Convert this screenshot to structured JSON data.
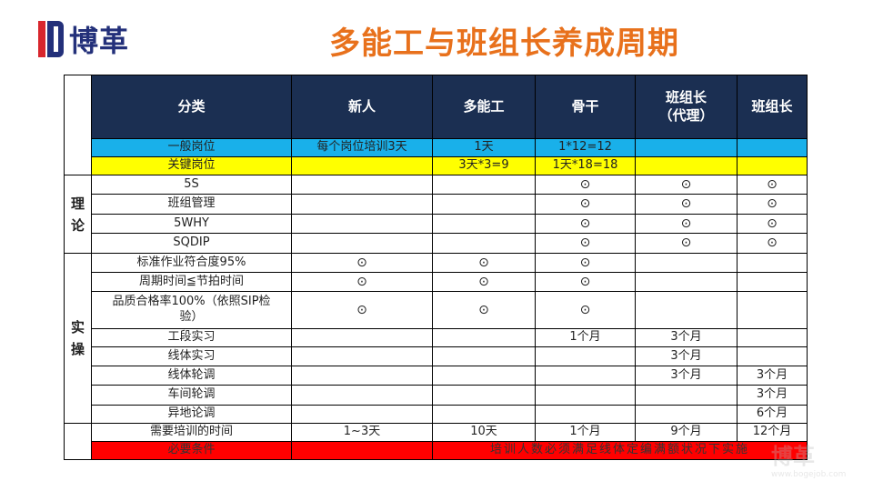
{
  "logo": {
    "text": "博革",
    "colors": {
      "red": "#d8262d",
      "blue": "#23307a"
    }
  },
  "title": "多能工与班组长养成周期",
  "table": {
    "headers": [
      "分类",
      "新人",
      "多能工",
      "骨干",
      "班组长\n（代理）",
      "班组长"
    ],
    "rows": [
      {
        "group": "",
        "label": "一般岗位",
        "cells": [
          "每个岗位培训3天",
          "1天",
          "1*12=12",
          "",
          ""
        ],
        "style": "blue"
      },
      {
        "group": "",
        "label": "关键岗位",
        "cells": [
          "",
          "3天*3=9",
          "1天*18=18",
          "",
          ""
        ],
        "style": "yellow"
      },
      {
        "group": "理论",
        "label": "5S",
        "cells": [
          "",
          "",
          "⊙",
          "⊙",
          "⊙"
        ]
      },
      {
        "group": "理论",
        "label": "班组管理",
        "cells": [
          "",
          "",
          "⊙",
          "⊙",
          "⊙"
        ]
      },
      {
        "group": "理论",
        "label": "5WHY",
        "cells": [
          "",
          "",
          "⊙",
          "⊙",
          "⊙"
        ]
      },
      {
        "group": "理论",
        "label": "SQDIP",
        "cells": [
          "",
          "",
          "⊙",
          "⊙",
          "⊙"
        ]
      },
      {
        "group": "实操",
        "label": "标准作业符合度95%",
        "cells": [
          "⊙",
          "⊙",
          "⊙",
          "",
          ""
        ]
      },
      {
        "group": "实操",
        "label": "周期时间≦节拍时间",
        "cells": [
          "⊙",
          "⊙",
          "⊙",
          "",
          ""
        ]
      },
      {
        "group": "实操",
        "label": "品质合格率100%（依照SIP检验）",
        "cells": [
          "⊙",
          "⊙",
          "⊙",
          "",
          ""
        ]
      },
      {
        "group": "实操",
        "label": "工段实习",
        "cells": [
          "",
          "",
          "1个月",
          "3个月",
          ""
        ]
      },
      {
        "group": "实操",
        "label": "线体实习",
        "cells": [
          "",
          "",
          "",
          "3个月",
          ""
        ]
      },
      {
        "group": "实操",
        "label": "线体轮调",
        "cells": [
          "",
          "",
          "",
          "3个月",
          "3个月"
        ]
      },
      {
        "group": "实操",
        "label": "车间轮调",
        "cells": [
          "",
          "",
          "",
          "",
          "3个月"
        ]
      },
      {
        "group": "实操",
        "label": "异地论调",
        "cells": [
          "",
          "",
          "",
          "",
          "6个月"
        ]
      },
      {
        "group": "",
        "label": "需要培训的时间",
        "cells": [
          "1~3天",
          "10天",
          "1个月",
          "9个月",
          "12个月"
        ]
      },
      {
        "group": "",
        "label": "必要条件",
        "cells": [
          "",
          "培训人数必须满足线体定编满额状况下实施"
        ],
        "style": "red"
      }
    ],
    "groups": {
      "theory": "理论",
      "practice": "实操"
    },
    "colors": {
      "header": "#1b2f52",
      "blue": "#19b0ea",
      "yellow": "#ffff00",
      "red": "#ff0000"
    }
  },
  "watermark": {
    "text": "博革",
    "sub": "www.bogejob.com"
  }
}
